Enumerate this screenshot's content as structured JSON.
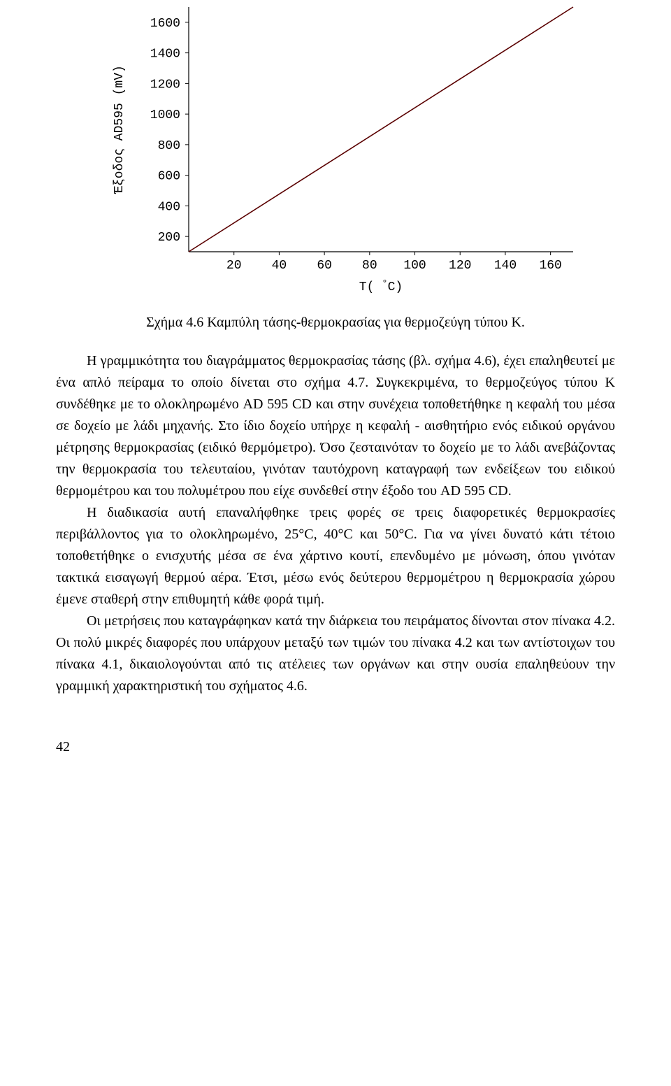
{
  "chart": {
    "type": "line",
    "y_label": "Έξοδος AD595 (mV)",
    "x_label": "T( °C)",
    "x_ticks": [
      20,
      40,
      60,
      80,
      100,
      120,
      140,
      160
    ],
    "y_ticks": [
      200,
      400,
      600,
      800,
      1000,
      1200,
      1400,
      1600
    ],
    "xlim": [
      0,
      170
    ],
    "ylim": [
      100,
      1700
    ],
    "series": {
      "color": "#5a0000",
      "stroke_width": 1.6,
      "points": [
        [
          0,
          100
        ],
        [
          170,
          1700
        ]
      ]
    },
    "axis_color": "#000000",
    "axis_width": 1.2,
    "tick_font_family": "Courier, monospace",
    "tick_font_size": 18,
    "label_font_family": "Courier, monospace",
    "label_font_size": 18,
    "background_color": "#ffffff"
  },
  "caption": "Σχήμα 4.6 Καμπύλη τάσης-θερμοκρασίας για θερμοζεύγη τύπου K.",
  "paragraphs": [
    "Η γραμμικότητα του διαγράμματος θερμοκρασίας τάσης (βλ. σχήμα 4.6), έχει επαληθευτεί με ένα απλό πείραμα το οποίο δίνεται στο σχήμα 4.7. Συγκεκριμένα, το θερμοζεύγος τύπου K συνδέθηκε με το ολοκληρωμένο AD 595 CD και στην συνέχεια τοποθετήθηκε η κεφαλή του μέσα σε δοχείο με λάδι μηχανής. Στο ίδιο δοχείο υπήρχε η κεφαλή - αισθητήριο ενός ειδικού οργάνου μέτρησης θερμοκρασίας (ειδικό θερμόμετρο). Όσο ζεσταινόταν το δοχείο με το λάδι ανεβάζοντας την θερμοκρασία του τελευταίου, γινόταν ταυτόχρονη καταγραφή των ενδείξεων του ειδικού θερμομέτρου και του πολυμέτρου που είχε συνδεθεί στην έξοδο του AD 595 CD.",
    "Η διαδικασία αυτή επαναλήφθηκε τρεις φορές σε τρεις διαφορετικές θερμοκρασίες περιβάλλοντος για το ολοκληρωμένο, 25°C, 40°C και 50°C. Για να γίνει δυνατό κάτι τέτοιο τοποθετήθηκε ο ενισχυτής μέσα σε ένα χάρτινο κουτί, επενδυμένο με μόνωση, όπου γινόταν τακτικά εισαγωγή θερμού αέρα. Έτσι, μέσω ενός δεύτερου θερμομέτρου η θερμοκρασία χώρου έμενε σταθερή στην επιθυμητή κάθε φορά τιμή.",
    "Οι μετρήσεις που καταγράφηκαν κατά την διάρκεια του πειράματος δίνονται στον πίνακα 4.2. Οι πολύ μικρές διαφορές που υπάρχουν μεταξύ των τιμών του πίνακα 4.2 και των αντίστοιχων του πίνακα 4.1, δικαιολογούνται από τις ατέλειες των οργάνων και στην ουσία επαληθεύουν την γραμμική χαρακτηριστική του σχήματος 4.6."
  ],
  "page_number": "42"
}
